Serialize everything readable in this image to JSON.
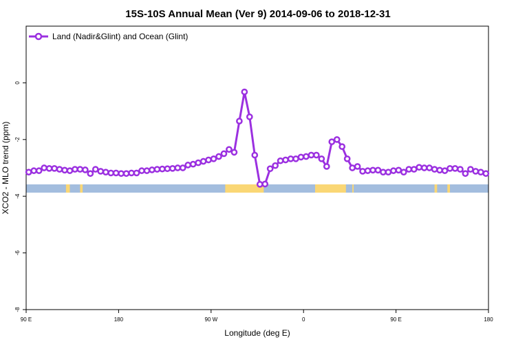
{
  "chart_data": {
    "type": "line",
    "title": "15S-10S Annual Mean (Ver 9)   2014-09-06 to 2018-12-31",
    "xlabel": "Longitude (deg E)",
    "ylabel": "XCO2 - MLO trend (ppm)",
    "xlim": [
      90,
      450
    ],
    "ylim": [
      -8,
      2
    ],
    "x_ticks": [
      {
        "value": 90,
        "label": "90 E"
      },
      {
        "value": 162,
        "label": "180"
      },
      {
        "value": 234,
        "label": "90 W"
      },
      {
        "value": 306,
        "label": "0"
      },
      {
        "value": 378,
        "label": "90 E"
      },
      {
        "value": 450,
        "label": "180"
      }
    ],
    "y_ticks": [
      {
        "value": 0,
        "label": "0"
      },
      {
        "value": -2,
        "label": "-2"
      },
      {
        "value": -4,
        "label": "-4"
      },
      {
        "value": -6,
        "label": "-6"
      },
      {
        "value": -8,
        "label": "-8"
      }
    ],
    "legend": {
      "position": "top-left"
    },
    "series": [
      {
        "name": "Land (Nadir&Glint) and Ocean (Glint)",
        "color": "#9b30e0",
        "x": [
          92,
          96,
          100,
          104,
          108,
          112,
          116,
          120,
          124,
          128,
          132,
          136,
          140,
          144,
          148,
          152,
          156,
          160,
          164,
          168,
          172,
          176,
          180,
          184,
          188,
          192,
          196,
          200,
          204,
          208,
          212,
          216,
          220,
          224,
          228,
          232,
          236,
          240,
          244,
          248,
          252,
          256,
          260,
          264,
          268,
          272,
          276,
          280,
          284,
          288,
          292,
          296,
          300,
          304,
          308,
          312,
          316,
          320,
          324,
          328,
          332,
          336,
          340,
          344,
          348,
          352,
          356,
          360,
          364,
          368,
          372,
          376,
          380,
          384,
          388,
          392,
          396,
          400,
          404,
          408,
          412,
          416,
          420,
          424,
          428,
          432,
          436,
          440,
          444,
          448
        ],
        "y": [
          -3.15,
          -3.1,
          -3.1,
          -3.0,
          -3.02,
          -3.02,
          -3.05,
          -3.08,
          -3.1,
          -3.05,
          -3.05,
          -3.07,
          -3.2,
          -3.05,
          -3.12,
          -3.15,
          -3.18,
          -3.18,
          -3.2,
          -3.2,
          -3.18,
          -3.18,
          -3.1,
          -3.1,
          -3.07,
          -3.05,
          -3.04,
          -3.03,
          -3.02,
          -3.0,
          -3.0,
          -2.9,
          -2.87,
          -2.82,
          -2.77,
          -2.72,
          -2.68,
          -2.6,
          -2.5,
          -2.35,
          -2.45,
          -1.35,
          -0.32,
          -1.2,
          -2.55,
          -3.58,
          -3.57,
          -3.03,
          -2.92,
          -2.75,
          -2.72,
          -2.68,
          -2.68,
          -2.62,
          -2.6,
          -2.55,
          -2.55,
          -2.68,
          -2.95,
          -2.08,
          -2.0,
          -2.25,
          -2.68,
          -3.0,
          -2.95,
          -3.12,
          -3.1,
          -3.08,
          -3.08,
          -3.15,
          -3.15,
          -3.1,
          -3.08,
          -3.15,
          -3.05,
          -3.05,
          -2.98,
          -3.0,
          -3.0,
          -3.05,
          -3.08,
          -3.1,
          -3.02,
          -3.02,
          -3.05,
          -3.2,
          -3.05,
          -3.12,
          -3.15,
          -3.2
        ]
      }
    ],
    "land_mask_colors": {
      "ocean": "#a3bdde",
      "land": "#fad775"
    },
    "land_segments_lon": [
      [
        121,
        124
      ],
      [
        132,
        134
      ],
      [
        245,
        275
      ],
      [
        315,
        339
      ],
      [
        344,
        345
      ],
      [
        408,
        410
      ],
      [
        418,
        420
      ]
    ]
  }
}
